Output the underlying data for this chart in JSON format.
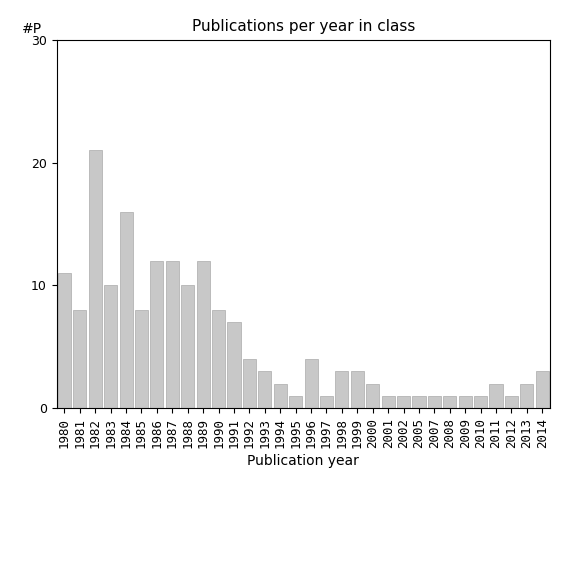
{
  "title": "Publications per year in class",
  "xlabel": "Publication year",
  "ylabel": "#P",
  "ylim": [
    0,
    30
  ],
  "bar_color": "#c8c8c8",
  "bar_edgecolor": "#aaaaaa",
  "categories": [
    "1980",
    "1981",
    "1982",
    "1983",
    "1984",
    "1985",
    "1986",
    "1987",
    "1988",
    "1989",
    "1990",
    "1991",
    "1992",
    "1993",
    "1994",
    "1995",
    "1996",
    "1997",
    "1998",
    "1999",
    "2000",
    "2001",
    "2002",
    "2005",
    "2007",
    "2008",
    "2009",
    "2010",
    "2011",
    "2012",
    "2013",
    "2014"
  ],
  "values": [
    11,
    8,
    21,
    10,
    16,
    8,
    12,
    12,
    10,
    12,
    8,
    7,
    4,
    3,
    2,
    1,
    4,
    1,
    3,
    3,
    2,
    1,
    1,
    1,
    1,
    1,
    1,
    1,
    2,
    1,
    2,
    3
  ],
  "yticks": [
    0,
    10,
    20,
    30
  ],
  "background_color": "#ffffff",
  "title_fontsize": 11,
  "axis_label_fontsize": 10,
  "tick_fontsize": 9
}
